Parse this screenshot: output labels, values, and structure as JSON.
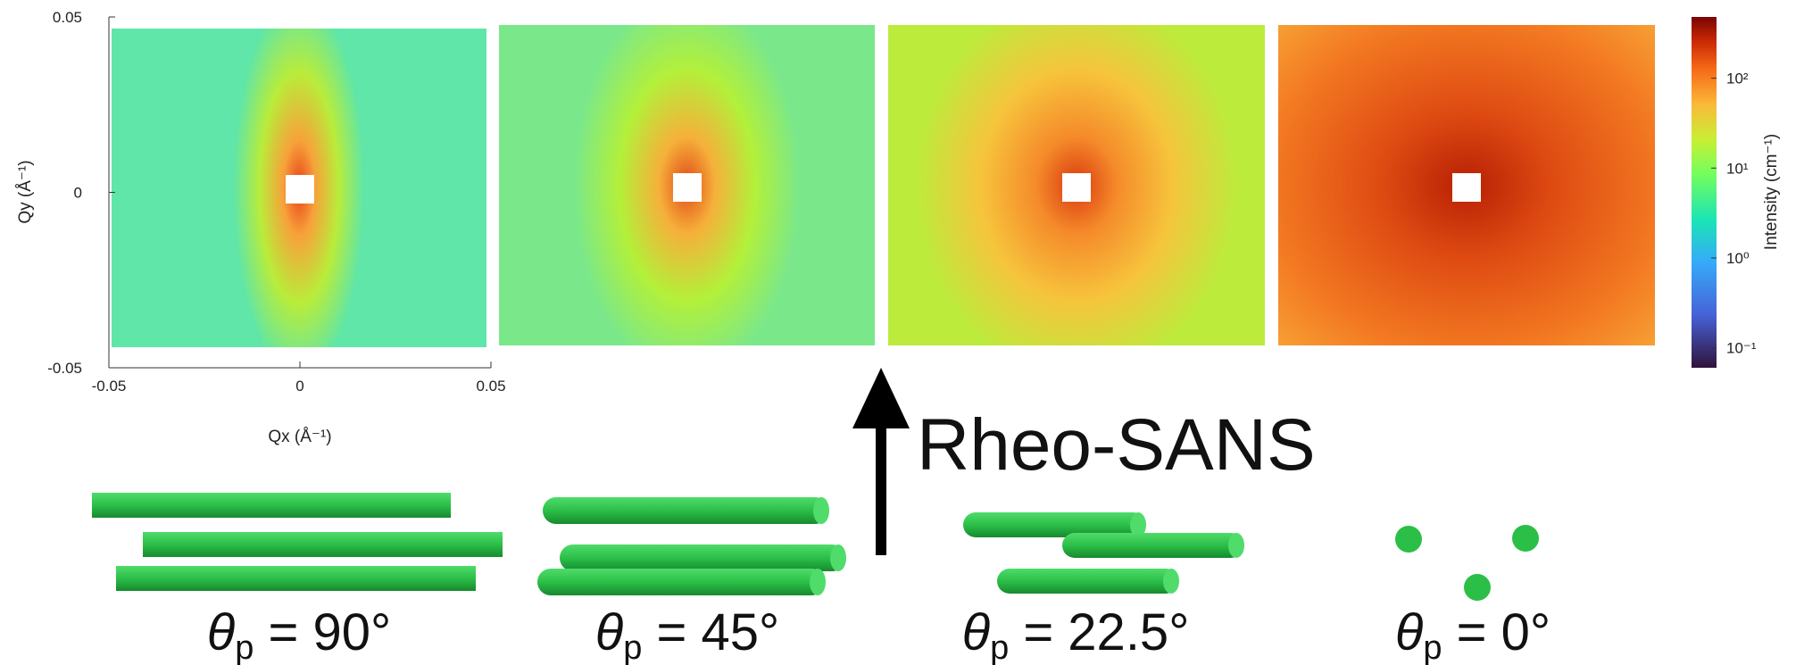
{
  "chart_data": {
    "type": "heatmap",
    "xlabel": "Qx (Å⁻¹)",
    "ylabel": "Qy (Å⁻¹)",
    "xlim": [
      -0.05,
      0.05
    ],
    "ylim": [
      -0.05,
      0.05
    ],
    "xticks": [
      -0.05,
      0,
      0.05
    ],
    "yticks": [
      -0.05,
      0,
      0.05
    ],
    "colorbar": {
      "label": "Intensity (cm⁻¹)",
      "log": true,
      "lim": [
        0.06,
        480
      ],
      "ticks": [
        {
          "value": 0.1,
          "label": "10⁻¹"
        },
        {
          "value": 1,
          "label": "10⁰"
        },
        {
          "value": 10,
          "label": "10¹"
        },
        {
          "value": 100,
          "label": "10²"
        }
      ]
    },
    "annotation": "Rheo-SANS",
    "panels": [
      {
        "symbol": "θ",
        "sub": "p",
        "text": " = 90°"
      },
      {
        "symbol": "θ",
        "sub": "p",
        "text": " = 45°"
      },
      {
        "symbol": "θ",
        "sub": "p",
        "text": " = 22.5°"
      },
      {
        "symbol": "θ",
        "sub": "p",
        "text": " = 0°"
      }
    ]
  }
}
